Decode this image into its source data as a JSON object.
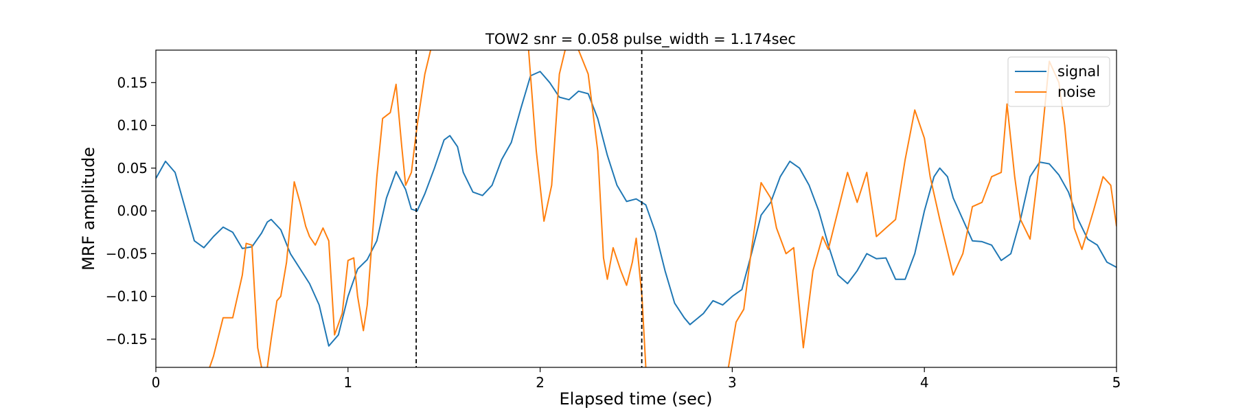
{
  "chart_data": {
    "type": "line",
    "title": "TOW2 snr = 0.058 pulse_width = 1.174sec",
    "xlabel": "Elapsed time (sec)",
    "ylabel": "MRF amplitude",
    "xlim": [
      0,
      5
    ],
    "ylim": [
      -0.183,
      0.188
    ],
    "xticks": [
      0,
      1,
      2,
      3,
      4,
      5
    ],
    "xtick_labels": [
      "0",
      "1",
      "2",
      "3",
      "4",
      "5"
    ],
    "yticks": [
      -0.15,
      -0.1,
      -0.05,
      0.0,
      0.05,
      0.1,
      0.15
    ],
    "ytick_labels": [
      "−0.15",
      "−0.10",
      "−0.05",
      "0.00",
      "0.05",
      "0.10",
      "0.15"
    ],
    "grid": false,
    "legend_position": "upper right",
    "vlines": [
      1.355,
      2.529
    ],
    "series": [
      {
        "name": "signal",
        "color": "#1f77b4",
        "points": [
          [
            0,
            0.038
          ],
          [
            0.05,
            0.058
          ],
          [
            0.1,
            0.045
          ],
          [
            0.2,
            -0.035
          ],
          [
            0.25,
            -0.043
          ],
          [
            0.3,
            -0.03
          ],
          [
            0.35,
            -0.019
          ],
          [
            0.4,
            -0.025
          ],
          [
            0.45,
            -0.044
          ],
          [
            0.5,
            -0.042
          ],
          [
            0.55,
            -0.026
          ],
          [
            0.58,
            -0.013
          ],
          [
            0.6,
            -0.01
          ],
          [
            0.65,
            -0.022
          ],
          [
            0.7,
            -0.05
          ],
          [
            0.8,
            -0.085
          ],
          [
            0.85,
            -0.11
          ],
          [
            0.9,
            -0.158
          ],
          [
            0.95,
            -0.145
          ],
          [
            1.0,
            -0.1
          ],
          [
            1.05,
            -0.068
          ],
          [
            1.1,
            -0.057
          ],
          [
            1.15,
            -0.035
          ],
          [
            1.2,
            0.015
          ],
          [
            1.25,
            0.046
          ],
          [
            1.3,
            0.025
          ],
          [
            1.33,
            0.002
          ],
          [
            1.36,
            0.0
          ],
          [
            1.4,
            0.02
          ],
          [
            1.45,
            0.05
          ],
          [
            1.5,
            0.083
          ],
          [
            1.53,
            0.088
          ],
          [
            1.57,
            0.075
          ],
          [
            1.6,
            0.045
          ],
          [
            1.65,
            0.022
          ],
          [
            1.7,
            0.018
          ],
          [
            1.75,
            0.03
          ],
          [
            1.8,
            0.06
          ],
          [
            1.85,
            0.08
          ],
          [
            1.9,
            0.12
          ],
          [
            1.95,
            0.158
          ],
          [
            2.0,
            0.163
          ],
          [
            2.05,
            0.15
          ],
          [
            2.1,
            0.133
          ],
          [
            2.15,
            0.13
          ],
          [
            2.2,
            0.14
          ],
          [
            2.25,
            0.137
          ],
          [
            2.3,
            0.108
          ],
          [
            2.35,
            0.065
          ],
          [
            2.4,
            0.03
          ],
          [
            2.45,
            0.011
          ],
          [
            2.5,
            0.014
          ],
          [
            2.55,
            0.007
          ],
          [
            2.6,
            -0.025
          ],
          [
            2.65,
            -0.07
          ],
          [
            2.7,
            -0.108
          ],
          [
            2.75,
            -0.125
          ],
          [
            2.78,
            -0.133
          ],
          [
            2.85,
            -0.12
          ],
          [
            2.9,
            -0.105
          ],
          [
            2.95,
            -0.11
          ],
          [
            3.0,
            -0.1
          ],
          [
            3.05,
            -0.092
          ],
          [
            3.1,
            -0.05
          ],
          [
            3.15,
            -0.005
          ],
          [
            3.2,
            0.01
          ],
          [
            3.25,
            0.04
          ],
          [
            3.3,
            0.058
          ],
          [
            3.35,
            0.05
          ],
          [
            3.4,
            0.03
          ],
          [
            3.45,
            0.0
          ],
          [
            3.5,
            -0.04
          ],
          [
            3.55,
            -0.075
          ],
          [
            3.6,
            -0.085
          ],
          [
            3.65,
            -0.07
          ],
          [
            3.7,
            -0.05
          ],
          [
            3.75,
            -0.056
          ],
          [
            3.8,
            -0.055
          ],
          [
            3.85,
            -0.08
          ],
          [
            3.9,
            -0.08
          ],
          [
            3.95,
            -0.05
          ],
          [
            4.0,
            0.0
          ],
          [
            4.05,
            0.04
          ],
          [
            4.08,
            0.05
          ],
          [
            4.12,
            0.04
          ],
          [
            4.15,
            0.015
          ],
          [
            4.2,
            -0.01
          ],
          [
            4.25,
            -0.035
          ],
          [
            4.3,
            -0.036
          ],
          [
            4.35,
            -0.04
          ],
          [
            4.4,
            -0.058
          ],
          [
            4.45,
            -0.05
          ],
          [
            4.5,
            -0.01
          ],
          [
            4.55,
            0.04
          ],
          [
            4.6,
            0.057
          ],
          [
            4.65,
            0.055
          ],
          [
            4.7,
            0.042
          ],
          [
            4.75,
            0.022
          ],
          [
            4.8,
            -0.01
          ],
          [
            4.85,
            -0.033
          ],
          [
            4.9,
            -0.04
          ],
          [
            4.95,
            -0.06
          ],
          [
            5.0,
            -0.066
          ]
        ]
      },
      {
        "name": "noise",
        "color": "#ff7f0e",
        "points": [
          [
            0.28,
            -0.183
          ],
          [
            0.3,
            -0.17
          ],
          [
            0.35,
            -0.125
          ],
          [
            0.4,
            -0.125
          ],
          [
            0.45,
            -0.075
          ],
          [
            0.47,
            -0.038
          ],
          [
            0.5,
            -0.04
          ],
          [
            0.53,
            -0.16
          ],
          [
            0.55,
            -0.183
          ]
        ],
        "extra_segments": [
          [
            [
              0.58,
              -0.183
            ],
            [
              0.6,
              -0.15
            ],
            [
              0.63,
              -0.105
            ],
            [
              0.65,
              -0.1
            ],
            [
              0.68,
              -0.06
            ],
            [
              0.72,
              0.034
            ],
            [
              0.75,
              0.01
            ],
            [
              0.78,
              -0.018
            ],
            [
              0.8,
              -0.03
            ],
            [
              0.83,
              -0.04
            ],
            [
              0.87,
              -0.02
            ],
            [
              0.9,
              -0.035
            ],
            [
              0.93,
              -0.145
            ],
            [
              0.97,
              -0.12
            ],
            [
              1.0,
              -0.058
            ],
            [
              1.03,
              -0.055
            ],
            [
              1.05,
              -0.1
            ],
            [
              1.08,
              -0.14
            ],
            [
              1.1,
              -0.11
            ],
            [
              1.15,
              0.04
            ],
            [
              1.18,
              0.108
            ],
            [
              1.22,
              0.115
            ],
            [
              1.25,
              0.148
            ],
            [
              1.28,
              0.075
            ],
            [
              1.3,
              0.03
            ],
            [
              1.33,
              0.045
            ],
            [
              1.36,
              0.1
            ],
            [
              1.4,
              0.16
            ],
            [
              1.43,
              0.188
            ]
          ],
          [
            [
              1.94,
              0.188
            ],
            [
              1.98,
              0.07
            ],
            [
              2.02,
              -0.012
            ],
            [
              2.06,
              0.03
            ],
            [
              2.1,
              0.16
            ],
            [
              2.13,
              0.188
            ]
          ],
          [
            [
              2.2,
              0.188
            ],
            [
              2.25,
              0.16
            ],
            [
              2.3,
              0.07
            ],
            [
              2.33,
              -0.055
            ],
            [
              2.35,
              -0.08
            ],
            [
              2.38,
              -0.043
            ],
            [
              2.42,
              -0.07
            ],
            [
              2.45,
              -0.087
            ],
            [
              2.48,
              -0.06
            ],
            [
              2.5,
              -0.032
            ],
            [
              2.53,
              -0.1
            ],
            [
              2.55,
              -0.183
            ]
          ],
          [
            [
              2.98,
              -0.183
            ],
            [
              3.02,
              -0.13
            ],
            [
              3.06,
              -0.115
            ],
            [
              3.1,
              -0.045
            ],
            [
              3.15,
              0.033
            ],
            [
              3.2,
              0.015
            ],
            [
              3.23,
              -0.02
            ],
            [
              3.28,
              -0.05
            ],
            [
              3.32,
              -0.043
            ],
            [
              3.37,
              -0.16
            ],
            [
              3.42,
              -0.07
            ],
            [
              3.47,
              -0.03
            ],
            [
              3.5,
              -0.045
            ],
            [
              3.55,
              0.0
            ],
            [
              3.6,
              0.045
            ],
            [
              3.65,
              0.01
            ],
            [
              3.7,
              0.045
            ],
            [
              3.75,
              -0.03
            ],
            [
              3.8,
              -0.02
            ],
            [
              3.85,
              -0.01
            ],
            [
              3.9,
              0.06
            ],
            [
              3.95,
              0.118
            ],
            [
              4.0,
              0.085
            ],
            [
              4.03,
              0.04
            ],
            [
              4.08,
              -0.01
            ],
            [
              4.15,
              -0.075
            ],
            [
              4.2,
              -0.05
            ],
            [
              4.25,
              0.005
            ],
            [
              4.3,
              0.01
            ],
            [
              4.35,
              0.04
            ],
            [
              4.4,
              0.045
            ],
            [
              4.43,
              0.125
            ],
            [
              4.47,
              0.04
            ],
            [
              4.5,
              -0.01
            ],
            [
              4.55,
              -0.033
            ],
            [
              4.6,
              0.06
            ],
            [
              4.65,
              0.175
            ],
            [
              4.7,
              0.15
            ],
            [
              4.73,
              0.1
            ],
            [
              4.78,
              -0.02
            ],
            [
              4.82,
              -0.045
            ],
            [
              4.88,
              0.0
            ],
            [
              4.93,
              0.04
            ],
            [
              4.97,
              0.03
            ],
            [
              5.0,
              -0.018
            ]
          ]
        ]
      }
    ]
  }
}
